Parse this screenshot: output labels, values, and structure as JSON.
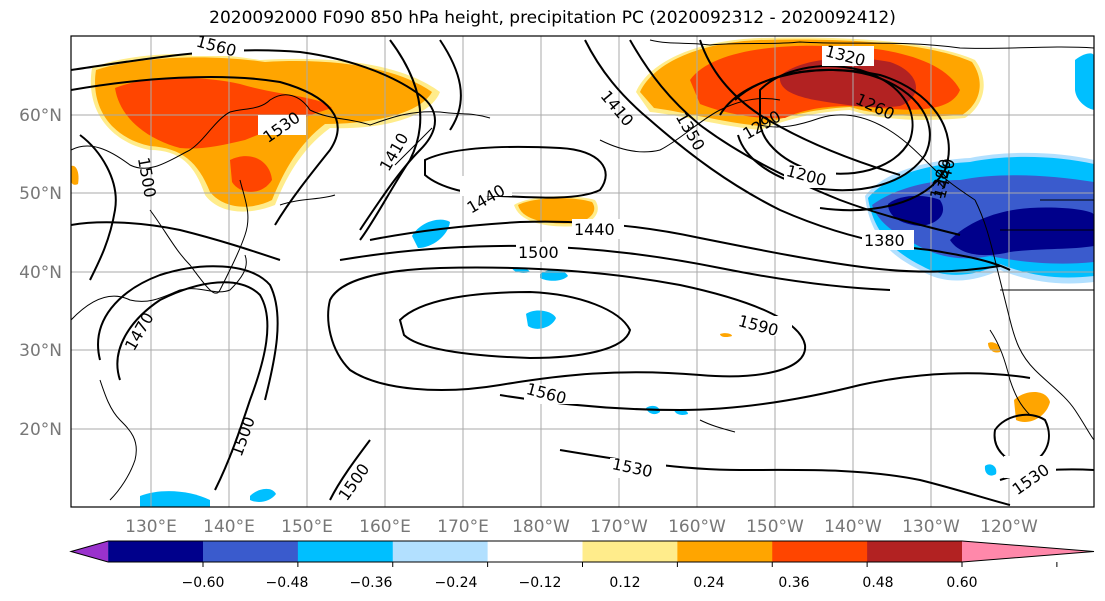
{
  "title": "2020092000 F090 850 hPa height, precipitation PC (2020092312 - 2020092412)",
  "map": {
    "lon_range": [
      120,
      251
    ],
    "lat_range": [
      10,
      70
    ],
    "lat_labels": [
      "60°N",
      "50°N",
      "40°N",
      "30°N",
      "20°N"
    ],
    "lon_labels": [
      "130°E",
      "140°E",
      "150°E",
      "160°E",
      "170°E",
      "180°W",
      "170°W",
      "160°W",
      "150°W",
      "140°W",
      "130°W",
      "120°W"
    ],
    "contour_labels": [
      "1560",
      "1530",
      "1410",
      "1410",
      "1350",
      "1320",
      "1290",
      "1260",
      "1200",
      "1380",
      "1440",
      "1440",
      "1500",
      "1500",
      "1590",
      "1560",
      "1530",
      "1530",
      "1500",
      "1500",
      "1470",
      "1440"
    ],
    "grid": true
  },
  "colorbar": {
    "colors": [
      "#9a32cd",
      "#00008b",
      "#3a5bcd",
      "#00bfff",
      "#b2e0ff",
      "#ffffff",
      "#ffec8b",
      "#ffa500",
      "#ff4500",
      "#b22222",
      "#ff88aa"
    ],
    "tick_labels": [
      "−0.60",
      "−0.48",
      "−0.36",
      "−0.24",
      "−0.12",
      "0.12",
      "0.24",
      "0.36",
      "0.48",
      "0.60"
    ]
  },
  "fill_colors": {
    "orange": "#ffa500",
    "red_orange": "#ff4500",
    "dark_red": "#b22222",
    "light_yellow": "#ffec8b",
    "cyan": "#00bfff",
    "mid_blue": "#3a5bcd",
    "navy": "#00008b"
  }
}
